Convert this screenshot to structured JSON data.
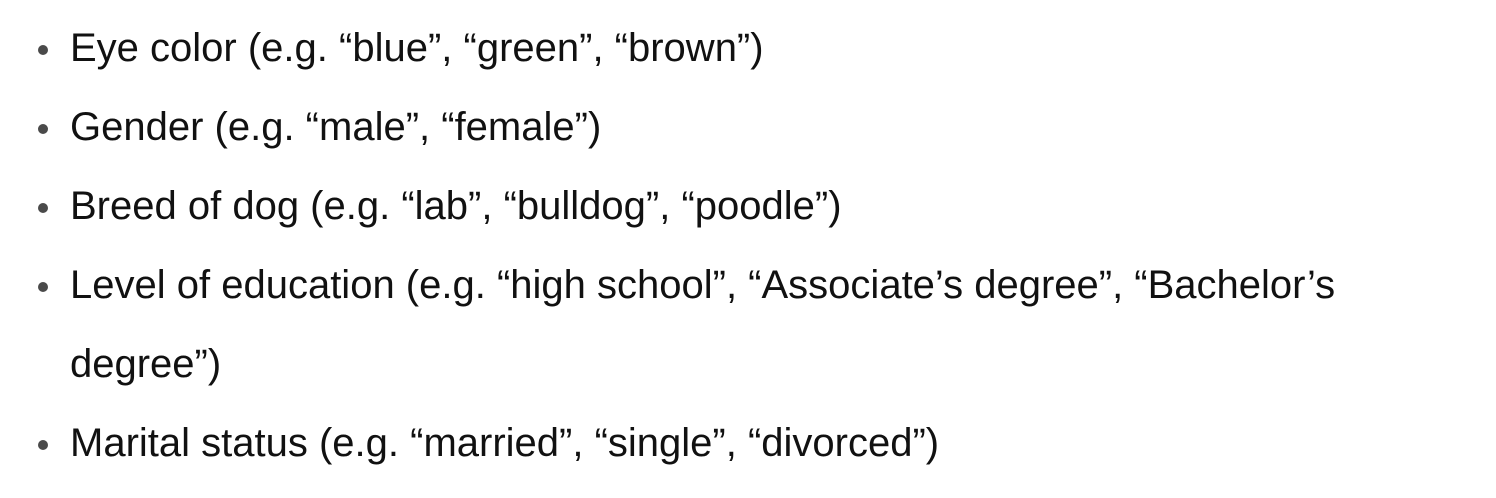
{
  "list": {
    "items": [
      {
        "text": "Eye color (e.g. “blue”, “green”, “brown”)"
      },
      {
        "text": "Gender (e.g. “male”, “female”)"
      },
      {
        "text": "Breed of dog (e.g. “lab”, “bulldog”, “poodle”)"
      },
      {
        "text": "Level of education (e.g. “high school”, “Associate’s degree”, “Bachelor’s degree”)"
      },
      {
        "text": "Marital status (e.g. “married”, “single”, “divorced”)"
      }
    ]
  }
}
